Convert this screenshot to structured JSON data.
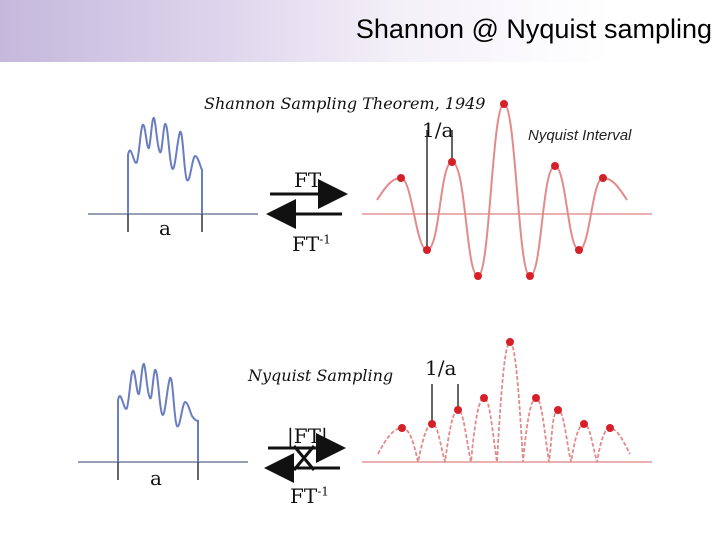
{
  "title": "Shannon @ Nyquist sampling",
  "colors": {
    "signal": "#6a7dc0",
    "sample": "#d62028",
    "sinc_curve": "#e38a8a",
    "axis": "#9aa0b4"
  },
  "top": {
    "theorem_label": "Shannon Sampling Theorem, 1949",
    "width_label": "a",
    "ft_label": "FT",
    "ift_label": "FT",
    "ift_superscript": "-1",
    "interval_label": "1/a",
    "nyquist_interval_label": "Nyquist Interval"
  },
  "bottom": {
    "sampling_label": "Nyquist Sampling",
    "width_label": "a",
    "ft_label": "|FT|",
    "ift_label": "FT",
    "ift_superscript": "-1",
    "interval_label": "1/a"
  }
}
